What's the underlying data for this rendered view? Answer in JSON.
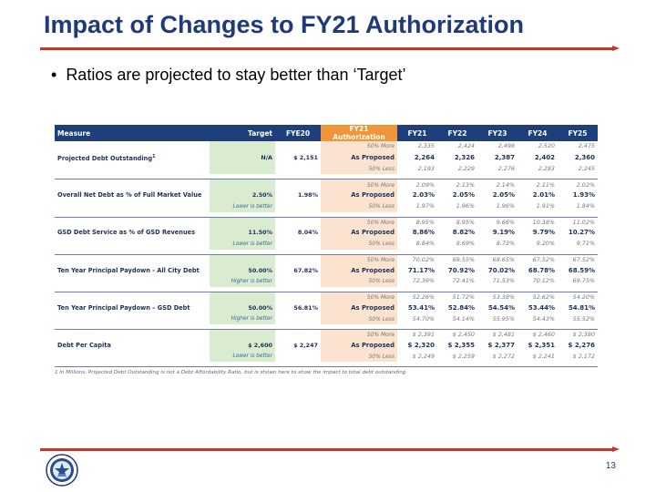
{
  "title": "Impact of Changes to FY21 Authorization",
  "bullet": "Ratios are projected to stay better than ‘Target’",
  "bullet_marker": "•",
  "header": {
    "measure": "Measure",
    "target": "Target",
    "fye20": "FYE20",
    "auth": "FY21 Authorization",
    "years": [
      "FY21",
      "FY22",
      "FY23",
      "FY24",
      "FY25"
    ]
  },
  "groups": [
    {
      "measure": "Projected Debt Outstanding",
      "measure_mark": "1",
      "target": "N/A",
      "target_note": "",
      "fye20": "$ 2,151",
      "rows": [
        {
          "scenario": "50% More",
          "values": [
            "2,335",
            "2,424",
            "2,498",
            "2,520",
            "2,475"
          ]
        },
        {
          "scenario": "As Proposed",
          "values": [
            "2,264",
            "2,326",
            "2,387",
            "2,402",
            "2,360"
          ]
        },
        {
          "scenario": "50% Less",
          "values": [
            "2,193",
            "2,229",
            "2,276",
            "2,283",
            "2,245"
          ]
        }
      ]
    },
    {
      "measure": "Overall Net Debt as % of Full Market Value",
      "measure_mark": "",
      "target": "2.50%",
      "target_note": "Lower is better",
      "fye20": "1.98%",
      "rows": [
        {
          "scenario": "50% More",
          "values": [
            "2.09%",
            "2.13%",
            "2.14%",
            "2.11%",
            "2.02%"
          ]
        },
        {
          "scenario": "As Proposed",
          "values": [
            "2.03%",
            "2.05%",
            "2.05%",
            "2.01%",
            "1.93%"
          ]
        },
        {
          "scenario": "50% Less",
          "values": [
            "1.97%",
            "1.96%",
            "1.96%",
            "1.91%",
            "1.84%"
          ]
        }
      ]
    },
    {
      "measure": "GSD Debt Service as % of GSD Revenues",
      "measure_mark": "",
      "target": "11.50%",
      "target_note": "Lower is better",
      "fye20": "8.04%",
      "rows": [
        {
          "scenario": "50% More",
          "values": [
            "8.95%",
            "8.95%",
            "9.66%",
            "10.38%",
            "11.02%"
          ]
        },
        {
          "scenario": "As Proposed",
          "values": [
            "8.86%",
            "8.82%",
            "9.19%",
            "9.79%",
            "10.27%"
          ]
        },
        {
          "scenario": "50% Less",
          "values": [
            "8.84%",
            "8.69%",
            "8.73%",
            "9.20%",
            "9.71%"
          ]
        }
      ]
    },
    {
      "measure": "Ten Year Principal Paydown - All City Debt",
      "measure_mark": "",
      "target": "50.00%",
      "target_note": "Higher is better",
      "fye20": "67.82%",
      "rows": [
        {
          "scenario": "50% More",
          "values": [
            "70.02%",
            "69.55%",
            "68.65%",
            "67.52%",
            "67.52%"
          ]
        },
        {
          "scenario": "As Proposed",
          "values": [
            "71.17%",
            "70.92%",
            "70.02%",
            "68.78%",
            "68.59%"
          ]
        },
        {
          "scenario": "50% Less",
          "values": [
            "72.39%",
            "72.41%",
            "71.53%",
            "70.12%",
            "69.75%"
          ]
        }
      ]
    },
    {
      "measure": "Ten Year Principal Paydown – GSD Debt",
      "measure_mark": "",
      "target": "50.00%",
      "target_note": "Higher is better",
      "fye20": "56.81%",
      "rows": [
        {
          "scenario": "50% More",
          "values": [
            "52.26%",
            "51.72%",
            "53.38%",
            "52.62%",
            "54.20%"
          ]
        },
        {
          "scenario": "As Proposed",
          "values": [
            "53.41%",
            "52.84%",
            "54.54%",
            "53.44%",
            "54.81%"
          ]
        },
        {
          "scenario": "50% Less",
          "values": [
            "54.70%",
            "54.14%",
            "55.95%",
            "54.43%",
            "55.52%"
          ]
        }
      ]
    },
    {
      "measure": "Debt Per Capita",
      "measure_mark": "",
      "target": "$ 2,600",
      "target_note": "Lower is better",
      "fye20": "$ 2,247",
      "rows": [
        {
          "scenario": "50% More",
          "values": [
            "$ 2,391",
            "$ 2,450",
            "$ 2,481",
            "$ 2,460",
            "$ 2,380"
          ]
        },
        {
          "scenario": "As Proposed",
          "values": [
            "$ 2,320",
            "$ 2,355",
            "$ 2,377",
            "$ 2,351",
            "$ 2,276"
          ]
        },
        {
          "scenario": "50% Less",
          "values": [
            "$ 2,249",
            "$ 2,259",
            "$ 2,272",
            "$ 2,241",
            "$ 2,172"
          ]
        }
      ]
    }
  ],
  "footnote": "1 In Millions. Projected Debt Outstanding is not a Debt Affordability Ratio, but is shown here to show the impact to total debt outstanding",
  "page_number": "13",
  "colors": {
    "title": "#1f3a7a",
    "rule": "#c0392b",
    "header_bg": "#1f3f7a",
    "auth_header": "#f0953a",
    "target_bg": "#d9ecd0",
    "scenario_bg": "#fbe3cf"
  },
  "icons": {
    "seal": "city-seal-icon"
  }
}
